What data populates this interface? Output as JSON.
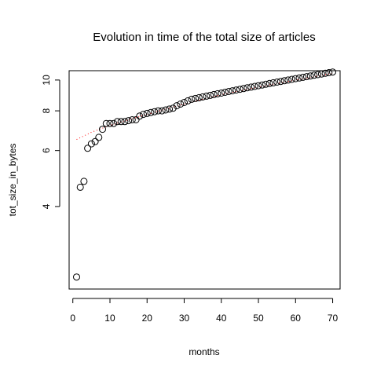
{
  "chart_data": {
    "type": "scatter",
    "title": "Evolution in time of the total size of articles",
    "xlabel": "months",
    "ylabel": "tot_size_in_bytes",
    "xlim": [
      -1,
      72
    ],
    "ylim": [
      2.2,
      10.7
    ],
    "y_scale": "log",
    "x_ticks": [
      0,
      10,
      20,
      30,
      40,
      50,
      60,
      70
    ],
    "y_ticks": [
      4,
      6,
      8,
      10
    ],
    "grid": false,
    "legend": "none",
    "series": [
      {
        "marker": "open-circle",
        "color": "#000000",
        "x": [
          1,
          2,
          3,
          4,
          5,
          6,
          7,
          8,
          9,
          10,
          11,
          12,
          13,
          14,
          15,
          16,
          17,
          18,
          19,
          20,
          21,
          22,
          23,
          24,
          25,
          26,
          27,
          28,
          29,
          30,
          31,
          32,
          33,
          34,
          35,
          36,
          37,
          38,
          39,
          40,
          41,
          42,
          43,
          44,
          45,
          46,
          47,
          48,
          49,
          50,
          51,
          52,
          53,
          54,
          55,
          56,
          57,
          58,
          59,
          60,
          61,
          62,
          63,
          64,
          65,
          66,
          67,
          68,
          69,
          70
        ],
        "y": [
          2.4,
          4.6,
          4.8,
          6.1,
          6.3,
          6.4,
          6.6,
          7.0,
          7.3,
          7.3,
          7.3,
          7.4,
          7.4,
          7.4,
          7.45,
          7.5,
          7.5,
          7.7,
          7.8,
          7.85,
          7.9,
          7.95,
          8.0,
          8.0,
          8.05,
          8.1,
          8.15,
          8.3,
          8.4,
          8.5,
          8.6,
          8.7,
          8.75,
          8.8,
          8.85,
          8.9,
          8.95,
          9.0,
          9.05,
          9.1,
          9.15,
          9.2,
          9.25,
          9.3,
          9.35,
          9.4,
          9.45,
          9.5,
          9.55,
          9.6,
          9.65,
          9.7,
          9.75,
          9.8,
          9.85,
          9.9,
          9.95,
          10.0,
          10.05,
          10.1,
          10.15,
          10.2,
          10.25,
          10.3,
          10.35,
          10.4,
          10.45,
          10.5,
          10.55,
          10.6
        ]
      },
      {
        "line": "dotted",
        "color": "#ff0000",
        "x": [
          1,
          5,
          10,
          15,
          20,
          25,
          30,
          35,
          40,
          45,
          50,
          55,
          60,
          65,
          70
        ],
        "y": [
          6.5,
          6.85,
          7.2,
          7.5,
          7.8,
          8.1,
          8.4,
          8.7,
          9.0,
          9.25,
          9.5,
          9.75,
          10.0,
          10.25,
          10.5
        ]
      }
    ]
  }
}
